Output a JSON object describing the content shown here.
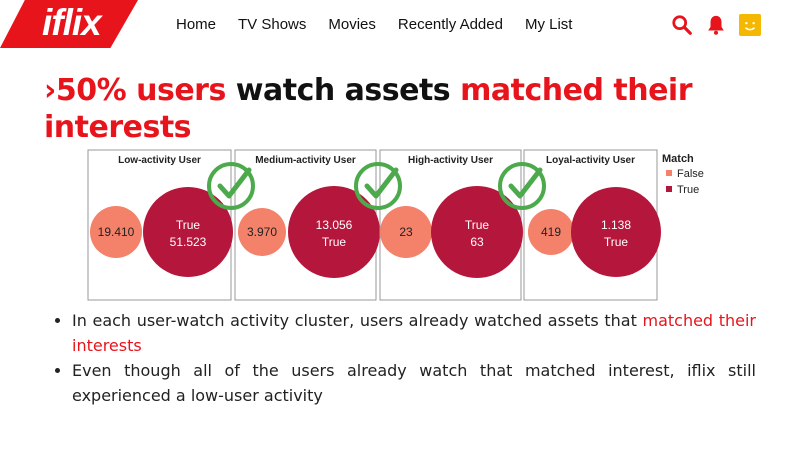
{
  "app": {
    "logo": "iflix"
  },
  "nav": {
    "items": [
      "Home",
      "TV Shows",
      "Movies",
      "Recently Added",
      "My List"
    ]
  },
  "header_icons": [
    "search-icon",
    "bell-icon",
    "profile-avatar-icon"
  ],
  "colors": {
    "brand_red": "#e8141c",
    "false_color": "#f4826a",
    "true_color": "#b5163b",
    "check_green": "#4caa4c",
    "avatar_yellow": "#f5b800"
  },
  "title": {
    "part1": "›50% users ",
    "part2": "watch assets ",
    "part3": "matched their interests"
  },
  "chart_data": {
    "type": "bubble",
    "panels": [
      {
        "title": "Low-activity User",
        "false_value": "19.410",
        "true_value": "51.523",
        "true_label": "True",
        "false_size": 19410,
        "true_size": 51523
      },
      {
        "title": "Medium-activity User",
        "false_value": "3.970",
        "true_value": "13.056",
        "true_label": "True",
        "false_size": 3970,
        "true_size": 13056
      },
      {
        "title": "High-activity User",
        "false_value": "23",
        "true_value": "63",
        "true_label": "True",
        "false_size": 23,
        "true_size": 63
      },
      {
        "title": "Loyal-activity User",
        "false_value": "419",
        "true_value": "1.138",
        "true_label": "True",
        "false_size": 419,
        "true_size": 1138
      }
    ],
    "legend": {
      "title": "Match",
      "items": [
        "False",
        "True"
      ],
      "placement": "right"
    }
  },
  "bullets": [
    {
      "text": "In each user-watch activity cluster, users already watched assets that ",
      "highlight": "matched their interests"
    },
    {
      "text": "Even though all of the users already watch that matched interest, iflix still experienced a low-user activity",
      "highlight": ""
    }
  ]
}
